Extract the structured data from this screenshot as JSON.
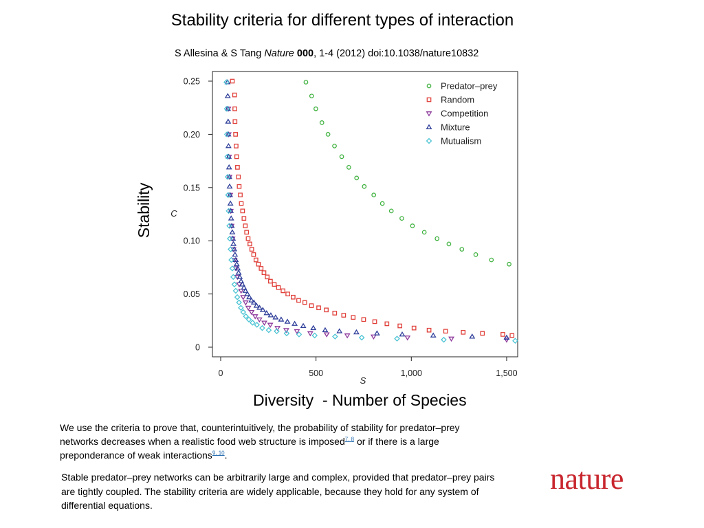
{
  "slide": {
    "title": "Stability criteria for different types of interaction",
    "citation": {
      "authors": "S Allesina & S Tang ",
      "journal": "Nature",
      "volume": "000",
      "rest": ", 1-4 (2012) doi:10.1038/nature10832"
    },
    "y_overlay_label": "Stability",
    "x_overlay_label": "Diversity  - Number of Species",
    "caption1": {
      "text_a": "We use the criteria to prove that, counterintuitively, the probability of stability for predator–prey networks decreases when a realistic food web structure is imposed",
      "ref_a": "7, 8",
      "text_b": " or if there is a large preponderance of weak interactions",
      "ref_b": "9, 10",
      "text_c": "."
    },
    "caption2": "Stable predator–prey networks can be arbitrarily large and complex, provided that predator–prey pairs are tightly coupled. The stability criteria are widely applicable, because they hold for any system of differential equations.",
    "logo": "nature",
    "colors": {
      "logo": "#c8262e",
      "link": "#2a6fb0"
    }
  },
  "chart_data": {
    "type": "scatter",
    "title": "",
    "xlabel": "S",
    "ylabel": "C",
    "xlim": [
      0,
      1550
    ],
    "ylim": [
      0,
      0.25
    ],
    "x_ticks": [
      0,
      500,
      1000,
      1500
    ],
    "x_tick_labels": [
      "0",
      "500",
      "1,000",
      "1,500"
    ],
    "y_ticks": [
      0,
      0.05,
      0.1,
      0.15,
      0.2,
      0.25
    ],
    "y_tick_labels": [
      "0",
      "0.05",
      "0.10",
      "0.15",
      "0.20",
      "0.25"
    ],
    "grid": false,
    "legend_position": "top-right",
    "series": [
      {
        "name": "Predator–prey",
        "marker": "circle",
        "color": "#3fb23f",
        "points": [
          [
            447,
            0.249
          ],
          [
            477,
            0.236
          ],
          [
            499,
            0.224
          ],
          [
            531,
            0.211
          ],
          [
            563,
            0.2
          ],
          [
            597,
            0.189
          ],
          [
            635,
            0.179
          ],
          [
            672,
            0.169
          ],
          [
            713,
            0.159
          ],
          [
            753,
            0.151
          ],
          [
            803,
            0.143
          ],
          [
            848,
            0.135
          ],
          [
            895,
            0.128
          ],
          [
            950,
            0.121
          ],
          [
            1006,
            0.114
          ],
          [
            1068,
            0.108
          ],
          [
            1135,
            0.102
          ],
          [
            1197,
            0.097
          ],
          [
            1265,
            0.092
          ],
          [
            1338,
            0.087
          ],
          [
            1420,
            0.082
          ],
          [
            1513,
            0.078
          ]
        ]
      },
      {
        "name": "Random",
        "marker": "square",
        "color": "#e0403a",
        "points": [
          [
            61,
            0.25
          ],
          [
            73,
            0.237
          ],
          [
            74,
            0.224
          ],
          [
            75,
            0.212
          ],
          [
            78,
            0.2
          ],
          [
            81,
            0.189
          ],
          [
            84,
            0.179
          ],
          [
            88,
            0.169
          ],
          [
            93,
            0.16
          ],
          [
            97,
            0.151
          ],
          [
            103,
            0.143
          ],
          [
            108,
            0.135
          ],
          [
            115,
            0.128
          ],
          [
            122,
            0.121
          ],
          [
            129,
            0.114
          ],
          [
            136,
            0.108
          ],
          [
            144,
            0.102
          ],
          [
            153,
            0.097
          ],
          [
            163,
            0.092
          ],
          [
            173,
            0.087
          ],
          [
            185,
            0.082
          ],
          [
            198,
            0.078
          ],
          [
            212,
            0.074
          ],
          [
            227,
            0.07
          ],
          [
            244,
            0.066
          ],
          [
            261,
            0.062
          ],
          [
            281,
            0.059
          ],
          [
            303,
            0.056
          ],
          [
            327,
            0.053
          ],
          [
            352,
            0.05
          ],
          [
            380,
            0.047
          ],
          [
            409,
            0.044
          ],
          [
            441,
            0.042
          ],
          [
            476,
            0.039
          ],
          [
            514,
            0.037
          ],
          [
            554,
            0.035
          ],
          [
            598,
            0.032
          ],
          [
            645,
            0.03
          ],
          [
            695,
            0.028
          ],
          [
            750,
            0.026
          ],
          [
            808,
            0.024
          ],
          [
            872,
            0.022
          ],
          [
            940,
            0.02
          ],
          [
            1014,
            0.018
          ],
          [
            1093,
            0.016
          ],
          [
            1180,
            0.015
          ],
          [
            1272,
            0.014
          ],
          [
            1373,
            0.013
          ],
          [
            1480,
            0.012
          ],
          [
            1528,
            0.011
          ]
        ]
      },
      {
        "name": "Competition",
        "marker": "triangle-down",
        "color": "#8e3a9c",
        "points": [
          [
            40,
            0.224
          ],
          [
            42,
            0.2
          ],
          [
            44,
            0.179
          ],
          [
            46,
            0.16
          ],
          [
            50,
            0.143
          ],
          [
            53,
            0.128
          ],
          [
            57,
            0.114
          ],
          [
            62,
            0.102
          ],
          [
            67,
            0.092
          ],
          [
            73,
            0.082
          ],
          [
            80,
            0.074
          ],
          [
            88,
            0.066
          ],
          [
            97,
            0.059
          ],
          [
            107,
            0.053
          ],
          [
            118,
            0.047
          ],
          [
            131,
            0.042
          ],
          [
            145,
            0.037
          ],
          [
            162,
            0.033
          ],
          [
            181,
            0.029
          ],
          [
            203,
            0.026
          ],
          [
            229,
            0.023
          ],
          [
            260,
            0.021
          ],
          [
            298,
            0.018
          ],
          [
            344,
            0.016
          ],
          [
            400,
            0.015
          ],
          [
            470,
            0.013
          ],
          [
            556,
            0.012
          ],
          [
            664,
            0.011
          ],
          [
            802,
            0.01
          ],
          [
            980,
            0.009
          ],
          [
            1210,
            0.008
          ],
          [
            1500,
            0.007
          ]
        ]
      },
      {
        "name": "Mixture",
        "marker": "triangle-up",
        "color": "#2f3f9a",
        "points": [
          [
            36,
            0.249
          ],
          [
            37,
            0.236
          ],
          [
            38,
            0.224
          ],
          [
            39,
            0.212
          ],
          [
            40,
            0.2
          ],
          [
            41,
            0.189
          ],
          [
            42,
            0.179
          ],
          [
            44,
            0.169
          ],
          [
            45,
            0.16
          ],
          [
            47,
            0.151
          ],
          [
            49,
            0.143
          ],
          [
            51,
            0.135
          ],
          [
            53,
            0.128
          ],
          [
            55,
            0.121
          ],
          [
            58,
            0.114
          ],
          [
            61,
            0.108
          ],
          [
            64,
            0.102
          ],
          [
            67,
            0.097
          ],
          [
            71,
            0.092
          ],
          [
            75,
            0.087
          ],
          [
            79,
            0.082
          ],
          [
            84,
            0.078
          ],
          [
            89,
            0.074
          ],
          [
            94,
            0.07
          ],
          [
            100,
            0.066
          ],
          [
            107,
            0.062
          ],
          [
            114,
            0.059
          ],
          [
            122,
            0.056
          ],
          [
            130,
            0.053
          ],
          [
            140,
            0.05
          ],
          [
            150,
            0.047
          ],
          [
            161,
            0.044
          ],
          [
            174,
            0.042
          ],
          [
            188,
            0.039
          ],
          [
            204,
            0.037
          ],
          [
            221,
            0.035
          ],
          [
            241,
            0.032
          ],
          [
            263,
            0.03
          ],
          [
            288,
            0.028
          ],
          [
            317,
            0.026
          ],
          [
            350,
            0.024
          ],
          [
            388,
            0.022
          ],
          [
            433,
            0.02
          ],
          [
            486,
            0.018
          ],
          [
            548,
            0.016
          ],
          [
            623,
            0.015
          ],
          [
            712,
            0.014
          ],
          [
            820,
            0.013
          ],
          [
            952,
            0.012
          ],
          [
            1115,
            0.011
          ],
          [
            1319,
            0.01
          ],
          [
            1500,
            0.009
          ]
        ]
      },
      {
        "name": "Mutualism",
        "marker": "diamond",
        "color": "#4cc4d4",
        "points": [
          [
            30,
            0.249
          ],
          [
            32,
            0.224
          ],
          [
            33,
            0.2
          ],
          [
            35,
            0.179
          ],
          [
            37,
            0.16
          ],
          [
            39,
            0.143
          ],
          [
            42,
            0.128
          ],
          [
            45,
            0.114
          ],
          [
            48,
            0.102
          ],
          [
            52,
            0.092
          ],
          [
            56,
            0.082
          ],
          [
            61,
            0.074
          ],
          [
            66,
            0.066
          ],
          [
            72,
            0.059
          ],
          [
            79,
            0.053
          ],
          [
            87,
            0.047
          ],
          [
            96,
            0.042
          ],
          [
            106,
            0.037
          ],
          [
            118,
            0.033
          ],
          [
            132,
            0.029
          ],
          [
            148,
            0.026
          ],
          [
            167,
            0.023
          ],
          [
            190,
            0.021
          ],
          [
            218,
            0.018
          ],
          [
            252,
            0.016
          ],
          [
            294,
            0.015
          ],
          [
            346,
            0.013
          ],
          [
            411,
            0.012
          ],
          [
            493,
            0.011
          ],
          [
            600,
            0.01
          ],
          [
            740,
            0.009
          ],
          [
            925,
            0.008
          ],
          [
            1170,
            0.007
          ],
          [
            1545,
            0.006
          ]
        ]
      }
    ]
  }
}
